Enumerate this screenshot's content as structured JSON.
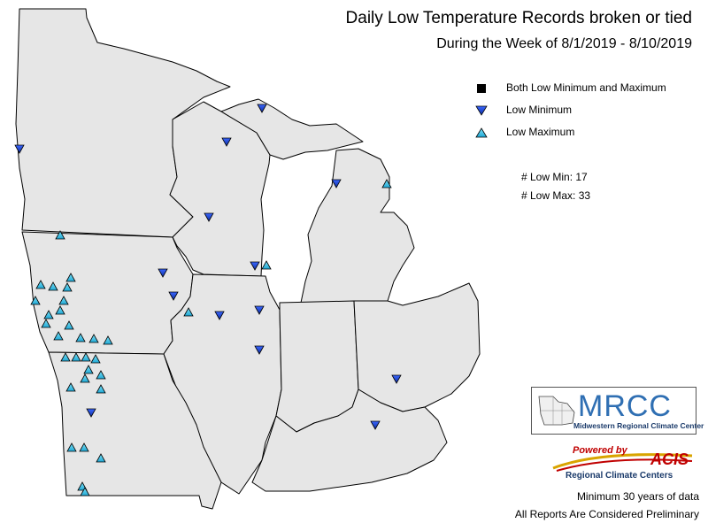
{
  "header": {
    "title": "Daily Low Temperature Records broken or tied",
    "subtitle": "During the Week of 8/1/2019 - 8/10/2019"
  },
  "legend": {
    "items": [
      {
        "symbol": "black-square",
        "label": "Both Low Minimum and Maximum"
      },
      {
        "symbol": "blue-down-triangle",
        "label": "Low Minimum"
      },
      {
        "symbol": "cyan-up-triangle",
        "label": "Low Maximum"
      }
    ]
  },
  "counts": {
    "low_min_text": "# Low Min: 17",
    "low_max_text": "# Low Max: 33"
  },
  "logos": {
    "mrcc": {
      "acronym": "MRCC",
      "full_name": "Midwestern Regional Climate Center"
    },
    "acis": {
      "powered_by": "Powered by",
      "name": "ACIS",
      "tagline": "Regional Climate Centers"
    }
  },
  "footnotes": {
    "line1": "Minimum 30 years of data",
    "line2": "All Reports Are Considered Preliminary"
  },
  "colors": {
    "state_fill": "#e6e6e6",
    "state_border": "#000000",
    "low_minimum": "#1a3fd6",
    "low_maximum": "#2ec8e8",
    "both": "#000000"
  }
}
